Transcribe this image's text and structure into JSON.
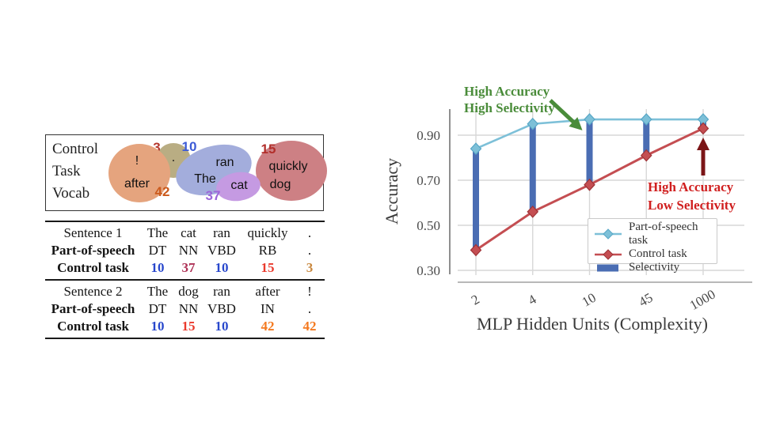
{
  "vocab_box": {
    "title_lines": [
      "Control",
      "Task",
      "Vocab"
    ],
    "clusters": [
      {
        "id": "period",
        "color": "#b9ad83",
        "number": "3",
        "number_color": "#b5372d",
        "words": [
          "."
        ]
      },
      {
        "id": "excl-after",
        "color": "#e5a47e",
        "number": "42",
        "number_color": "#cb5a1c",
        "words": [
          "!",
          "after"
        ]
      },
      {
        "id": "ran-the",
        "color": "#a3addc",
        "number": "10",
        "number_color": "#3c5bd6",
        "words": [
          "ran",
          "The"
        ]
      },
      {
        "id": "quickly-dog",
        "color": "#cd8084",
        "number": "15",
        "number_color": "#b22f2b",
        "words": [
          "quickly",
          "dog"
        ]
      },
      {
        "id": "cat",
        "color": "#c59ae2",
        "number": "37",
        "number_color": "#9b66d9",
        "words": [
          "cat"
        ]
      }
    ]
  },
  "table": {
    "blocks": [
      {
        "rows": [
          {
            "cells": [
              {
                "t": "Sentence 1"
              },
              {
                "t": "The"
              },
              {
                "t": "cat"
              },
              {
                "t": "ran"
              },
              {
                "t": "quickly"
              },
              {
                "t": "."
              }
            ]
          },
          {
            "cells": [
              {
                "t": "Part-of-speech",
                "b": 1
              },
              {
                "t": "DT"
              },
              {
                "t": "NN"
              },
              {
                "t": "VBD"
              },
              {
                "t": "RB"
              },
              {
                "t": "."
              }
            ]
          },
          {
            "cells": [
              {
                "t": "Control task",
                "b": 1
              },
              {
                "t": "10",
                "b": 1,
                "c": "#2847cc"
              },
              {
                "t": "37",
                "b": 1,
                "c": "#ae3156"
              },
              {
                "t": "10",
                "b": 1,
                "c": "#2847cc"
              },
              {
                "t": "15",
                "b": 1,
                "c": "#ea3a2d"
              },
              {
                "t": "3",
                "b": 1,
                "c": "#c9883f"
              }
            ]
          }
        ]
      },
      {
        "rows": [
          {
            "cells": [
              {
                "t": "Sentence 2"
              },
              {
                "t": "The"
              },
              {
                "t": "dog"
              },
              {
                "t": "ran"
              },
              {
                "t": "after"
              },
              {
                "t": "!"
              }
            ]
          },
          {
            "cells": [
              {
                "t": "Part-of-speech",
                "b": 1
              },
              {
                "t": "DT"
              },
              {
                "t": "NN"
              },
              {
                "t": "VBD"
              },
              {
                "t": "IN"
              },
              {
                "t": "."
              }
            ]
          },
          {
            "cells": [
              {
                "t": "Control task",
                "b": 1
              },
              {
                "t": "10",
                "b": 1,
                "c": "#2847cc"
              },
              {
                "t": "15",
                "b": 1,
                "c": "#ea3a2d"
              },
              {
                "t": "10",
                "b": 1,
                "c": "#2847cc"
              },
              {
                "t": "42",
                "b": 1,
                "c": "#f4791f"
              },
              {
                "t": "42",
                "b": 1,
                "c": "#f4791f"
              }
            ]
          }
        ]
      }
    ]
  },
  "chart_data": {
    "type": "line",
    "xlabel": "MLP Hidden Units (Complexity)",
    "ylabel": "Accuracy",
    "categories": [
      "2",
      "4",
      "10",
      "45",
      "1000"
    ],
    "series": [
      {
        "name": "Part-of-speech task",
        "color": "#7dc0d8",
        "edge": "#58a7c6",
        "values": [
          0.84,
          0.95,
          0.97,
          0.97,
          0.97
        ]
      },
      {
        "name": "Control task",
        "color": "#c44e52",
        "edge": "#9e3337",
        "values": [
          0.39,
          0.56,
          0.68,
          0.81,
          0.93
        ]
      }
    ],
    "selectivity": {
      "name": "Selectivity",
      "color": "#4a6db3"
    },
    "yticks": [
      0.9,
      0.7,
      0.5,
      0.3
    ],
    "ylim": [
      0.3,
      1.0
    ],
    "grid": true,
    "legend_position": "lower right",
    "annotations": [
      {
        "lines": [
          "High Accuracy",
          "High Selectivity"
        ],
        "color": "#4a8c3a",
        "arrow_color": "#4a8c3a"
      },
      {
        "lines": [
          "High Accuracy",
          "Low Selectivity"
        ],
        "color": "#d01f1f",
        "arrow_color": "#7b1517"
      }
    ]
  }
}
